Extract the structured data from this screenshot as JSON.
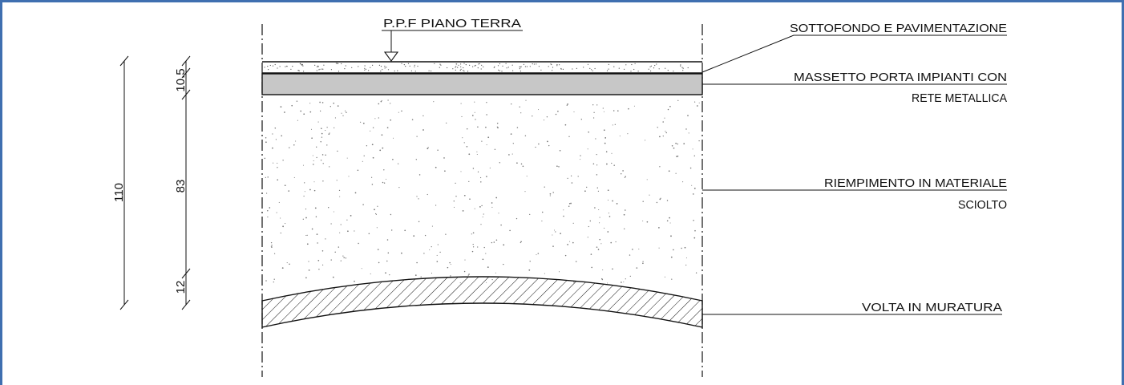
{
  "diagram": {
    "level_label": "P.P.F  PIANO  TERRA",
    "layers": [
      {
        "key": "sottofondo",
        "lines": [
          "SOTTOFONDO  E  PAVIMENTAZIONE"
        ]
      },
      {
        "key": "massetto",
        "lines": [
          "MASSETTO  PORTA  IMPIANTI  CON",
          "RETE  METALLICA"
        ]
      },
      {
        "key": "riempimento",
        "lines": [
          "RIEMPIMENTO  IN  MATERIALE",
          "SCIOLTO"
        ]
      },
      {
        "key": "volta",
        "lines": [
          "VOLTA  IN  MURATURA"
        ]
      }
    ],
    "dimensions": {
      "total": "110",
      "top": "10.5",
      "middle": "83",
      "bottom": "12"
    }
  },
  "colors": {
    "frame": "#3f6fb0",
    "line": "#111111",
    "massetto_fill": "#c7c7c7"
  }
}
